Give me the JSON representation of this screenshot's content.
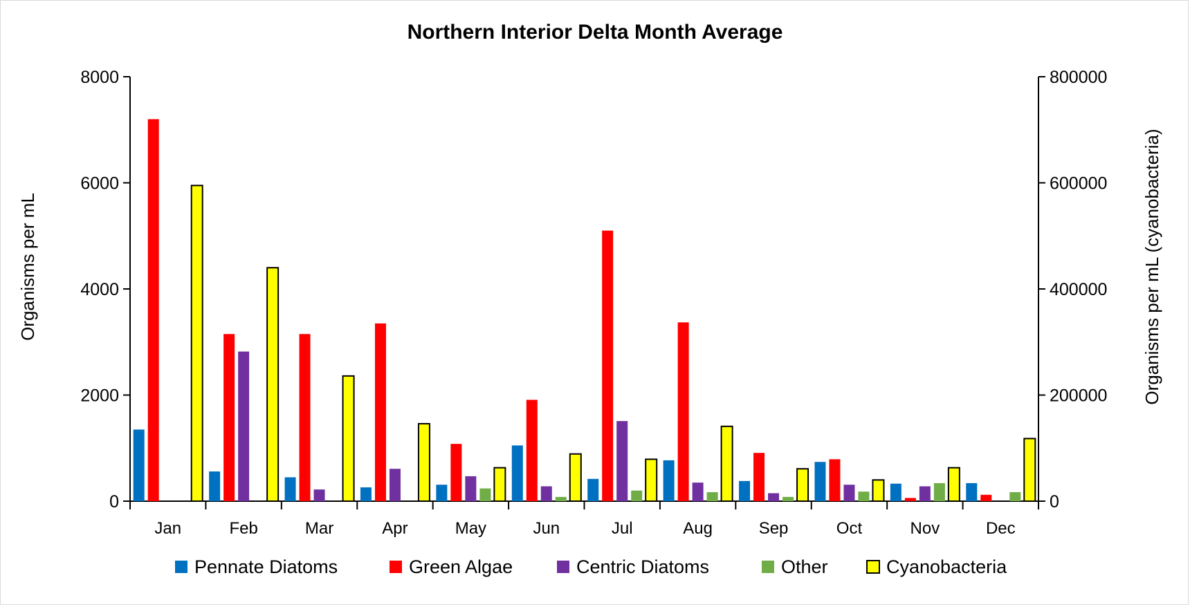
{
  "chart_data": {
    "type": "bar",
    "title": "Northern Interior Delta Month Average",
    "ylabel": "Organisms per mL",
    "y2label": "Organisms per mL (cyanobacteria)",
    "xlabel": "",
    "ylim": [
      0,
      8000
    ],
    "y2lim": [
      0,
      800000
    ],
    "yticks": [
      "0",
      "2000",
      "4000",
      "6000",
      "8000"
    ],
    "y2ticks": [
      "0",
      "200000",
      "400000",
      "600000",
      "800000"
    ],
    "categories": [
      "Jan",
      "Feb",
      "Mar",
      "Apr",
      "May",
      "Jun",
      "Jul",
      "Aug",
      "Sep",
      "Oct",
      "Nov",
      "Dec"
    ],
    "legend_position": "bottom",
    "grid": false,
    "series": [
      {
        "name": "Pennate Diatoms",
        "axis": "left",
        "color": "#0070C0",
        "outline": "",
        "values": [
          1350,
          560,
          450,
          260,
          310,
          1050,
          420,
          770,
          380,
          740,
          330,
          340
        ]
      },
      {
        "name": "Green Algae",
        "axis": "left",
        "color": "#FF0000",
        "outline": "",
        "values": [
          7200,
          3150,
          3150,
          3350,
          1080,
          1910,
          5100,
          3370,
          910,
          790,
          60,
          120
        ]
      },
      {
        "name": "Centric Diatoms",
        "axis": "left",
        "color": "#7030A0",
        "outline": "",
        "values": [
          0,
          2820,
          220,
          610,
          470,
          280,
          1510,
          350,
          150,
          310,
          280,
          0
        ]
      },
      {
        "name": "Other",
        "axis": "left",
        "color": "#70AD47",
        "outline": "",
        "values": [
          0,
          0,
          0,
          0,
          240,
          80,
          200,
          170,
          80,
          180,
          340,
          170
        ]
      },
      {
        "name": "Cyanobacteria",
        "axis": "right",
        "color": "#FFFF00",
        "outline": "#000000",
        "values": [
          595000,
          440000,
          236000,
          146000,
          63000,
          89000,
          79000,
          141000,
          61000,
          40000,
          63000,
          118000
        ]
      }
    ]
  }
}
